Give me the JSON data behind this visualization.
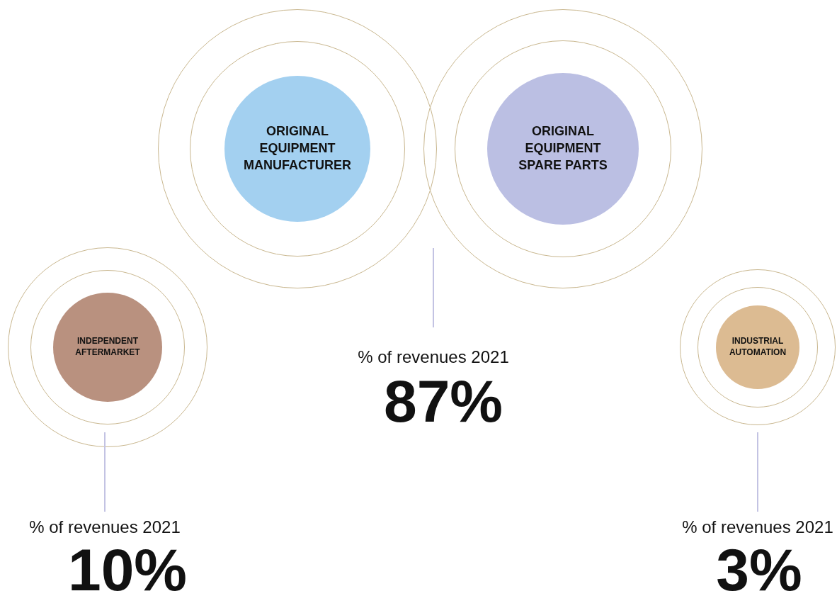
{
  "chart_data": {
    "type": "other",
    "categories": [
      "ORIGINAL EQUIPMENT MANUFACTURER",
      "ORIGINAL EQUIPMENT SPARE PARTS",
      "INDEPENDENT AFTERMARKET",
      "INDUSTRIAL AUTOMATION"
    ],
    "values": [
      87,
      null,
      10,
      3
    ],
    "value_labels": [
      "87%",
      null,
      "10%",
      "3%"
    ],
    "colors": [
      "#a3d0f0",
      "#bbbfe3",
      "#b9917f",
      "#dcbb92"
    ],
    "annotations": [
      "% of revenues 2021",
      "% of revenues 2021",
      "% of revenues 2021"
    ]
  }
}
